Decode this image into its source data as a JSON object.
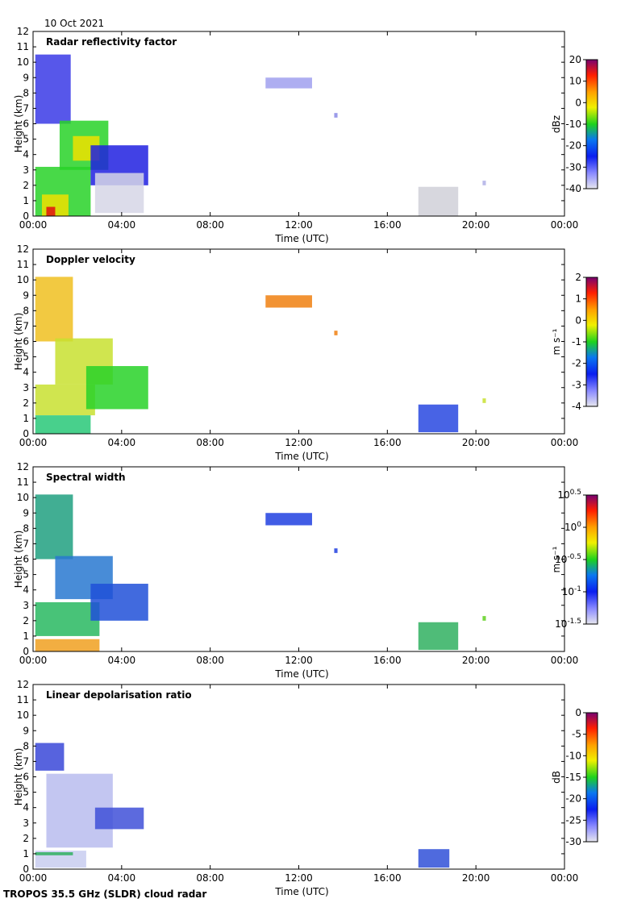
{
  "date": "10 Oct 2021",
  "footer": "TROPOS 35.5 GHz (SLDR) cloud radar",
  "colors": {
    "background": "#ffffff",
    "axis": "#000000"
  },
  "chart_data": [
    {
      "type": "heatmap",
      "title": "Radar reflectivity factor",
      "xlabel": "Time (UTC)",
      "ylabel": "Height (km)",
      "xticks": [
        "00:00",
        "04:00",
        "08:00",
        "12:00",
        "16:00",
        "20:00",
        "00:00"
      ],
      "xlim_hours": [
        0,
        24
      ],
      "ylim": [
        0,
        12
      ],
      "yticks": [
        "0",
        "1",
        "2",
        "3",
        "4",
        "5",
        "6",
        "7",
        "8",
        "9",
        "10",
        "11",
        "12"
      ],
      "colorbar": {
        "label": "dBz",
        "range": [
          -40,
          20
        ],
        "ticks": [
          {
            "v": 20,
            "t": "20"
          },
          {
            "v": 10,
            "t": "10"
          },
          {
            "v": 0,
            "t": "0"
          },
          {
            "v": -10,
            "t": "-10"
          },
          {
            "v": -20,
            "t": "-20"
          },
          {
            "v": -30,
            "t": "-30"
          },
          {
            "v": -40,
            "t": "-40"
          }
        ]
      },
      "features": [
        {
          "t0": 0.1,
          "t1": 1.7,
          "h0": 6.0,
          "h1": 10.5,
          "color": "#3a3ae6"
        },
        {
          "t0": 1.2,
          "t1": 3.4,
          "h0": 3.0,
          "h1": 6.2,
          "color": "#28d228"
        },
        {
          "t0": 1.8,
          "t1": 3.0,
          "h0": 3.6,
          "h1": 5.2,
          "color": "#f0e000"
        },
        {
          "t0": 0.1,
          "t1": 2.6,
          "h0": 0.0,
          "h1": 3.2,
          "color": "#28d228"
        },
        {
          "t0": 0.4,
          "t1": 1.6,
          "h0": 0.0,
          "h1": 1.4,
          "color": "#f0e000"
        },
        {
          "t0": 0.6,
          "t1": 1.0,
          "h0": 0.0,
          "h1": 0.6,
          "color": "#e01010"
        },
        {
          "t0": 2.6,
          "t1": 5.2,
          "h0": 2.0,
          "h1": 4.6,
          "color": "#2020e0"
        },
        {
          "t0": 2.8,
          "t1": 5.0,
          "h0": 0.2,
          "h1": 2.8,
          "color": "#d6d6e6"
        },
        {
          "t0": 10.5,
          "t1": 12.6,
          "h0": 8.3,
          "h1": 9.0,
          "color": "#a0a0ee"
        },
        {
          "t0": 13.6,
          "t1": 13.75,
          "h0": 6.4,
          "h1": 6.7,
          "color": "#8a8ae6"
        },
        {
          "t0": 17.4,
          "t1": 19.2,
          "h0": 0.0,
          "h1": 1.9,
          "color": "#d0d0d8"
        },
        {
          "t0": 20.3,
          "t1": 20.45,
          "h0": 2.0,
          "h1": 2.3,
          "color": "#b0b0e6"
        }
      ]
    },
    {
      "type": "heatmap",
      "title": "Doppler velocity",
      "xlabel": "Time (UTC)",
      "ylabel": "Height (km)",
      "xticks": [
        "00:00",
        "04:00",
        "08:00",
        "12:00",
        "16:00",
        "20:00",
        "00:00"
      ],
      "xlim_hours": [
        0,
        24
      ],
      "ylim": [
        0,
        12
      ],
      "yticks": [
        "0",
        "1",
        "2",
        "3",
        "4",
        "5",
        "6",
        "7",
        "8",
        "9",
        "10",
        "11",
        "12"
      ],
      "colorbar": {
        "label": "m s⁻¹",
        "range": [
          -4,
          2
        ],
        "ticks": [
          {
            "v": 2,
            "t": "2"
          },
          {
            "v": 1,
            "t": "1"
          },
          {
            "v": 0,
            "t": "0"
          },
          {
            "v": -1,
            "t": "-1"
          },
          {
            "v": -2,
            "t": "-2"
          },
          {
            "v": -3,
            "t": "-3"
          },
          {
            "v": -4,
            "t": "-4"
          }
        ]
      },
      "features": [
        {
          "t0": 0.1,
          "t1": 1.8,
          "h0": 6.0,
          "h1": 10.2,
          "color": "#f0c020"
        },
        {
          "t0": 1.0,
          "t1": 3.6,
          "h0": 3.2,
          "h1": 6.2,
          "color": "#c8e030"
        },
        {
          "t0": 0.1,
          "t1": 2.8,
          "h0": 1.2,
          "h1": 3.2,
          "color": "#c8e030"
        },
        {
          "t0": 0.1,
          "t1": 2.6,
          "h0": 0.0,
          "h1": 1.2,
          "color": "#28c878"
        },
        {
          "t0": 2.4,
          "t1": 5.2,
          "h0": 1.6,
          "h1": 4.4,
          "color": "#28d228"
        },
        {
          "t0": 10.5,
          "t1": 12.6,
          "h0": 8.2,
          "h1": 9.0,
          "color": "#f08010"
        },
        {
          "t0": 13.6,
          "t1": 13.75,
          "h0": 6.4,
          "h1": 6.7,
          "color": "#f08010"
        },
        {
          "t0": 17.4,
          "t1": 19.2,
          "h0": 0.1,
          "h1": 1.9,
          "color": "#2848e0"
        },
        {
          "t0": 20.3,
          "t1": 20.45,
          "h0": 2.0,
          "h1": 2.3,
          "color": "#c8e030"
        }
      ]
    },
    {
      "type": "heatmap",
      "title": "Spectral width",
      "xlabel": "Time (UTC)",
      "ylabel": "Height (km)",
      "xticks": [
        "00:00",
        "04:00",
        "08:00",
        "12:00",
        "16:00",
        "20:00",
        "00:00"
      ],
      "xlim_hours": [
        0,
        24
      ],
      "ylim": [
        0,
        12
      ],
      "yticks": [
        "0",
        "1",
        "2",
        "3",
        "4",
        "5",
        "6",
        "7",
        "8",
        "9",
        "10",
        "11",
        "12"
      ],
      "colorbar": {
        "label": "m s⁻¹",
        "range": [
          -1.5,
          0.5
        ],
        "ticks": [
          {
            "v": 0.5,
            "t": "10",
            "sup": "0.5"
          },
          {
            "v": 0,
            "t": "10",
            "sup": "0"
          },
          {
            "v": -0.5,
            "t": "10",
            "sup": "-0.5"
          },
          {
            "v": -1,
            "t": "10",
            "sup": "-1"
          },
          {
            "v": -1.5,
            "t": "10",
            "sup": "-1.5"
          }
        ]
      },
      "features": [
        {
          "t0": 0.1,
          "t1": 1.8,
          "h0": 6.0,
          "h1": 10.2,
          "color": "#20a080"
        },
        {
          "t0": 1.0,
          "t1": 3.6,
          "h0": 3.4,
          "h1": 6.2,
          "color": "#2878d0"
        },
        {
          "t0": 0.1,
          "t1": 3.0,
          "h0": 1.0,
          "h1": 3.2,
          "color": "#28b860"
        },
        {
          "t0": 0.1,
          "t1": 3.0,
          "h0": 0.0,
          "h1": 0.8,
          "color": "#f0a020"
        },
        {
          "t0": 2.6,
          "t1": 5.2,
          "h0": 2.0,
          "h1": 4.4,
          "color": "#2050d8"
        },
        {
          "t0": 10.5,
          "t1": 12.6,
          "h0": 8.2,
          "h1": 9.0,
          "color": "#2040e0"
        },
        {
          "t0": 13.6,
          "t1": 13.75,
          "h0": 6.4,
          "h1": 6.7,
          "color": "#2040e0"
        },
        {
          "t0": 17.4,
          "t1": 19.2,
          "h0": 0.1,
          "h1": 1.9,
          "color": "#30b060"
        },
        {
          "t0": 20.3,
          "t1": 20.45,
          "h0": 2.0,
          "h1": 2.3,
          "color": "#60d020"
        }
      ]
    },
    {
      "type": "heatmap",
      "title": "Linear depolarisation ratio",
      "xlabel": "Time (UTC)",
      "ylabel": "Height (km)",
      "xticks": [
        "00:00",
        "04:00",
        "08:00",
        "12:00",
        "16:00",
        "20:00",
        "00:00"
      ],
      "xlim_hours": [
        0,
        24
      ],
      "ylim": [
        0,
        12
      ],
      "yticks": [
        "0",
        "1",
        "2",
        "3",
        "4",
        "5",
        "6",
        "7",
        "8",
        "9",
        "10",
        "11",
        "12"
      ],
      "colorbar": {
        "label": "dB",
        "range": [
          -30,
          0
        ],
        "ticks": [
          {
            "v": 0,
            "t": "0"
          },
          {
            "v": -5,
            "t": "-5"
          },
          {
            "v": -10,
            "t": "-10"
          },
          {
            "v": -15,
            "t": "-15"
          },
          {
            "v": -20,
            "t": "-20"
          },
          {
            "v": -25,
            "t": "-25"
          },
          {
            "v": -30,
            "t": "-30"
          }
        ]
      },
      "features": [
        {
          "t0": 0.1,
          "t1": 1.4,
          "h0": 6.4,
          "h1": 8.2,
          "color": "#3a48d8"
        },
        {
          "t0": 0.6,
          "t1": 3.6,
          "h0": 1.4,
          "h1": 6.2,
          "color": "#b8bcee"
        },
        {
          "t0": 2.8,
          "t1": 5.0,
          "h0": 2.6,
          "h1": 4.0,
          "color": "#4050d8"
        },
        {
          "t0": 0.1,
          "t1": 2.4,
          "h0": 0.1,
          "h1": 1.2,
          "color": "#c8cdf0"
        },
        {
          "t0": 0.1,
          "t1": 1.8,
          "h0": 0.9,
          "h1": 1.1,
          "color": "#30b060"
        },
        {
          "t0": 17.4,
          "t1": 18.8,
          "h0": 0.1,
          "h1": 1.3,
          "color": "#3050d8"
        }
      ]
    }
  ]
}
